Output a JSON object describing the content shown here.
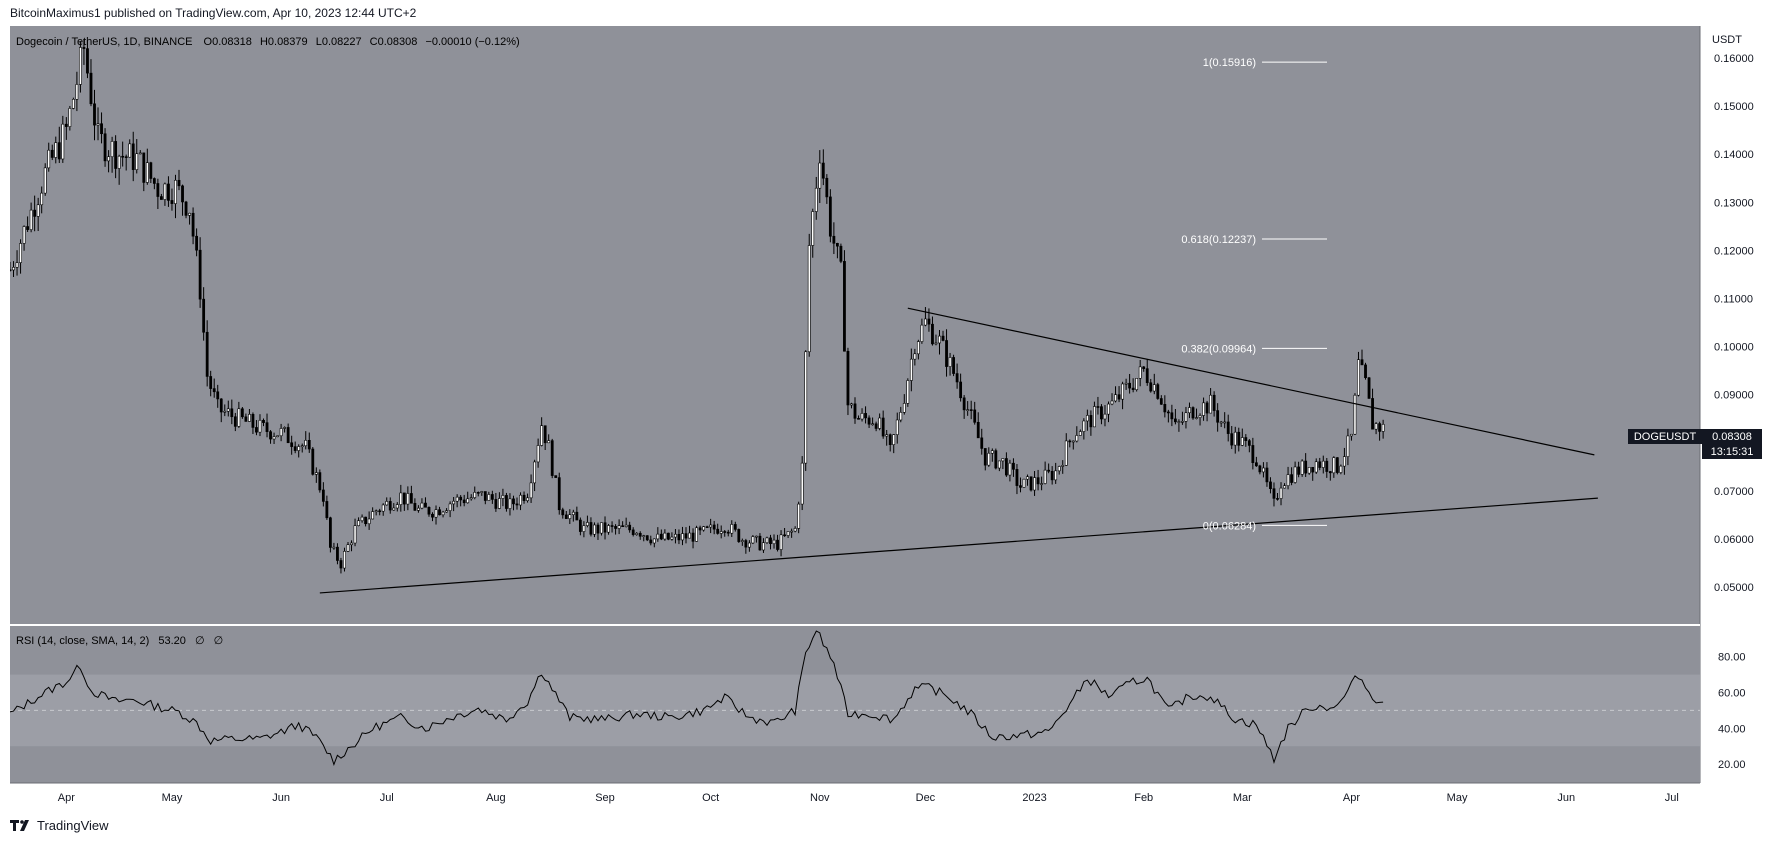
{
  "header": {
    "publisher_line": "BitcoinMaximus1 published on TradingView.com, Apr 10, 2023 12:44 UTC+2"
  },
  "footer": {
    "brand": "TradingView"
  },
  "legend": {
    "symbol": "Dogecoin / TetherUS, 1D, BINANCE",
    "o_label": "O",
    "o": "0.08318",
    "h_label": "H",
    "h": "0.08379",
    "l_label": "L",
    "l": "0.08227",
    "c_label": "C",
    "c": "0.08308",
    "change": "−0.00010 (−0.12%)"
  },
  "price_axis": {
    "unit": "USDT",
    "ticks": [
      "0.16000",
      "0.15000",
      "0.14000",
      "0.13000",
      "0.12000",
      "0.11000",
      "0.10000",
      "0.09000",
      "0.08000",
      "0.07000",
      "0.06000",
      "0.05000"
    ]
  },
  "price_badge": {
    "symbol": "DOGEUSDT",
    "price": "0.08308",
    "countdown": "13:15:31"
  },
  "fib_levels": [
    {
      "label": "1(0.15916)",
      "value": 0.15916
    },
    {
      "label": "0.618(0.12237)",
      "value": 0.12237
    },
    {
      "label": "0.382(0.09964)",
      "value": 0.09964
    },
    {
      "label": "0(0.06284)",
      "value": 0.06284
    }
  ],
  "rsi": {
    "legend_name": "RSI (14, close, SMA, 14, 2)",
    "legend_value": "53.20",
    "legend_extra1": "∅",
    "legend_extra2": "∅",
    "ticks": [
      "80.00",
      "60.00",
      "40.00",
      "20.00"
    ]
  },
  "time_axis": {
    "labels": [
      "Apr",
      "May",
      "Jun",
      "Jul",
      "Aug",
      "Sep",
      "Oct",
      "Nov",
      "Dec",
      "2023",
      "Feb",
      "Mar",
      "Apr",
      "May",
      "Jun",
      "Jul"
    ]
  },
  "colors": {
    "chart_bg": "#8f9199",
    "rsi_band": "#9c9ea6",
    "ink": "#000000"
  },
  "chart_data": {
    "type": "candlestick",
    "y_unit": "USDT",
    "ylim": [
      0.044,
      0.165
    ],
    "x_range": [
      "2022-03-16",
      "2023-07-09"
    ],
    "approx_close_path": [
      [
        "2022-03-16",
        0.116
      ],
      [
        "2022-03-26",
        0.136
      ],
      [
        "2022-04-01",
        0.145
      ],
      [
        "2022-04-06",
        0.162
      ],
      [
        "2022-04-10",
        0.143
      ],
      [
        "2022-04-16",
        0.14
      ],
      [
        "2022-04-21",
        0.139
      ],
      [
        "2022-04-27",
        0.133
      ],
      [
        "2022-05-02",
        0.133
      ],
      [
        "2022-05-06",
        0.129
      ],
      [
        "2022-05-09",
        0.112
      ],
      [
        "2022-05-11",
        0.094
      ],
      [
        "2022-05-14",
        0.087
      ],
      [
        "2022-05-20",
        0.085
      ],
      [
        "2022-05-26",
        0.083
      ],
      [
        "2022-06-01",
        0.082
      ],
      [
        "2022-06-08",
        0.079
      ],
      [
        "2022-06-13",
        0.069
      ],
      [
        "2022-06-15",
        0.058
      ],
      [
        "2022-06-18",
        0.055
      ],
      [
        "2022-06-22",
        0.062
      ],
      [
        "2022-06-28",
        0.066
      ],
      [
        "2022-07-05",
        0.069
      ],
      [
        "2022-07-10",
        0.066
      ],
      [
        "2022-07-15",
        0.066
      ],
      [
        "2022-07-20",
        0.068
      ],
      [
        "2022-07-28",
        0.069
      ],
      [
        "2022-08-05",
        0.067
      ],
      [
        "2022-08-10",
        0.07
      ],
      [
        "2022-08-14",
        0.084
      ],
      [
        "2022-08-16",
        0.079
      ],
      [
        "2022-08-19",
        0.067
      ],
      [
        "2022-08-26",
        0.062
      ],
      [
        "2022-09-01",
        0.062
      ],
      [
        "2022-09-10",
        0.062
      ],
      [
        "2022-09-15",
        0.06
      ],
      [
        "2022-09-20",
        0.06
      ],
      [
        "2022-09-28",
        0.061
      ],
      [
        "2022-10-05",
        0.063
      ],
      [
        "2022-10-10",
        0.06
      ],
      [
        "2022-10-15",
        0.059
      ],
      [
        "2022-10-20",
        0.059
      ],
      [
        "2022-10-25",
        0.062
      ],
      [
        "2022-10-27",
        0.075
      ],
      [
        "2022-10-29",
        0.121
      ],
      [
        "2022-11-01",
        0.141
      ],
      [
        "2022-11-04",
        0.125
      ],
      [
        "2022-11-07",
        0.115
      ],
      [
        "2022-11-09",
        0.088
      ],
      [
        "2022-11-12",
        0.085
      ],
      [
        "2022-11-17",
        0.085
      ],
      [
        "2022-11-21",
        0.078
      ],
      [
        "2022-11-25",
        0.09
      ],
      [
        "2022-11-28",
        0.101
      ],
      [
        "2022-12-01",
        0.105
      ],
      [
        "2022-12-05",
        0.101
      ],
      [
        "2022-12-10",
        0.093
      ],
      [
        "2022-12-15",
        0.083
      ],
      [
        "2022-12-18",
        0.077
      ],
      [
        "2022-12-23",
        0.076
      ],
      [
        "2022-12-28",
        0.071
      ],
      [
        "2023-01-02",
        0.072
      ],
      [
        "2023-01-07",
        0.074
      ],
      [
        "2023-01-12",
        0.082
      ],
      [
        "2023-01-17",
        0.085
      ],
      [
        "2023-01-23",
        0.088
      ],
      [
        "2023-01-28",
        0.092
      ],
      [
        "2023-02-01",
        0.095
      ],
      [
        "2023-02-05",
        0.091
      ],
      [
        "2023-02-10",
        0.083
      ],
      [
        "2023-02-15",
        0.087
      ],
      [
        "2023-02-20",
        0.088
      ],
      [
        "2023-02-25",
        0.082
      ],
      [
        "2023-03-01",
        0.08
      ],
      [
        "2023-03-05",
        0.077
      ],
      [
        "2023-03-10",
        0.067
      ],
      [
        "2023-03-12",
        0.072
      ],
      [
        "2023-03-16",
        0.074
      ],
      [
        "2023-03-22",
        0.076
      ],
      [
        "2023-03-28",
        0.075
      ],
      [
        "2023-04-01",
        0.081
      ],
      [
        "2023-04-03",
        0.096
      ],
      [
        "2023-04-05",
        0.092
      ],
      [
        "2023-04-07",
        0.084
      ],
      [
        "2023-04-10",
        0.083
      ]
    ],
    "annotations": {
      "descending_resistance": [
        [
          "2022-11-26",
          0.108
        ],
        [
          "2023-06-09",
          0.0775
        ]
      ],
      "ascending_support": [
        [
          "2022-06-12",
          0.0488
        ],
        [
          "2023-06-10",
          0.0685
        ]
      ]
    }
  },
  "rsi_data": {
    "ylim": [
      10,
      96
    ],
    "bands": [
      30,
      50,
      70
    ],
    "approx_path": [
      [
        "2022-03-16",
        48
      ],
      [
        "2022-03-26",
        60
      ],
      [
        "2022-04-01",
        66
      ],
      [
        "2022-04-05",
        75
      ],
      [
        "2022-04-08",
        61
      ],
      [
        "2022-04-15",
        55
      ],
      [
        "2022-04-20",
        56
      ],
      [
        "2022-04-27",
        52
      ],
      [
        "2022-05-03",
        49
      ],
      [
        "2022-05-08",
        43
      ],
      [
        "2022-05-12",
        33
      ],
      [
        "2022-05-17",
        34
      ],
      [
        "2022-05-26",
        34
      ],
      [
        "2022-06-01",
        38
      ],
      [
        "2022-06-06",
        42
      ],
      [
        "2022-06-11",
        35
      ],
      [
        "2022-06-16",
        22
      ],
      [
        "2022-06-21",
        30
      ],
      [
        "2022-06-27",
        40
      ],
      [
        "2022-07-05",
        46
      ],
      [
        "2022-07-12",
        40
      ],
      [
        "2022-07-19",
        46
      ],
      [
        "2022-07-27",
        51
      ],
      [
        "2022-08-04",
        45
      ],
      [
        "2022-08-10",
        55
      ],
      [
        "2022-08-14",
        72
      ],
      [
        "2022-08-17",
        62
      ],
      [
        "2022-08-22",
        46
      ],
      [
        "2022-09-01",
        45
      ],
      [
        "2022-09-10",
        48
      ],
      [
        "2022-09-20",
        46
      ],
      [
        "2022-09-29",
        50
      ],
      [
        "2022-10-05",
        57
      ],
      [
        "2022-10-12",
        46
      ],
      [
        "2022-10-19",
        43
      ],
      [
        "2022-10-25",
        50
      ],
      [
        "2022-10-28",
        82
      ],
      [
        "2022-10-31",
        95
      ],
      [
        "2022-11-05",
        76
      ],
      [
        "2022-11-09",
        48
      ],
      [
        "2022-11-15",
        48
      ],
      [
        "2022-11-22",
        45
      ],
      [
        "2022-11-28",
        62
      ],
      [
        "2022-12-02",
        63
      ],
      [
        "2022-12-08",
        57
      ],
      [
        "2022-12-14",
        48
      ],
      [
        "2022-12-20",
        35
      ],
      [
        "2022-12-28",
        36
      ],
      [
        "2023-01-05",
        38
      ],
      [
        "2023-01-12",
        56
      ],
      [
        "2023-01-16",
        68
      ],
      [
        "2023-01-22",
        58
      ],
      [
        "2023-01-29",
        66
      ],
      [
        "2023-02-02",
        68
      ],
      [
        "2023-02-08",
        50
      ],
      [
        "2023-02-14",
        58
      ],
      [
        "2023-02-20",
        58
      ],
      [
        "2023-02-27",
        45
      ],
      [
        "2023-03-05",
        42
      ],
      [
        "2023-03-10",
        23
      ],
      [
        "2023-03-14",
        40
      ],
      [
        "2023-03-20",
        52
      ],
      [
        "2023-03-28",
        52
      ],
      [
        "2023-04-03",
        70
      ],
      [
        "2023-04-06",
        60
      ],
      [
        "2023-04-10",
        53
      ]
    ]
  }
}
